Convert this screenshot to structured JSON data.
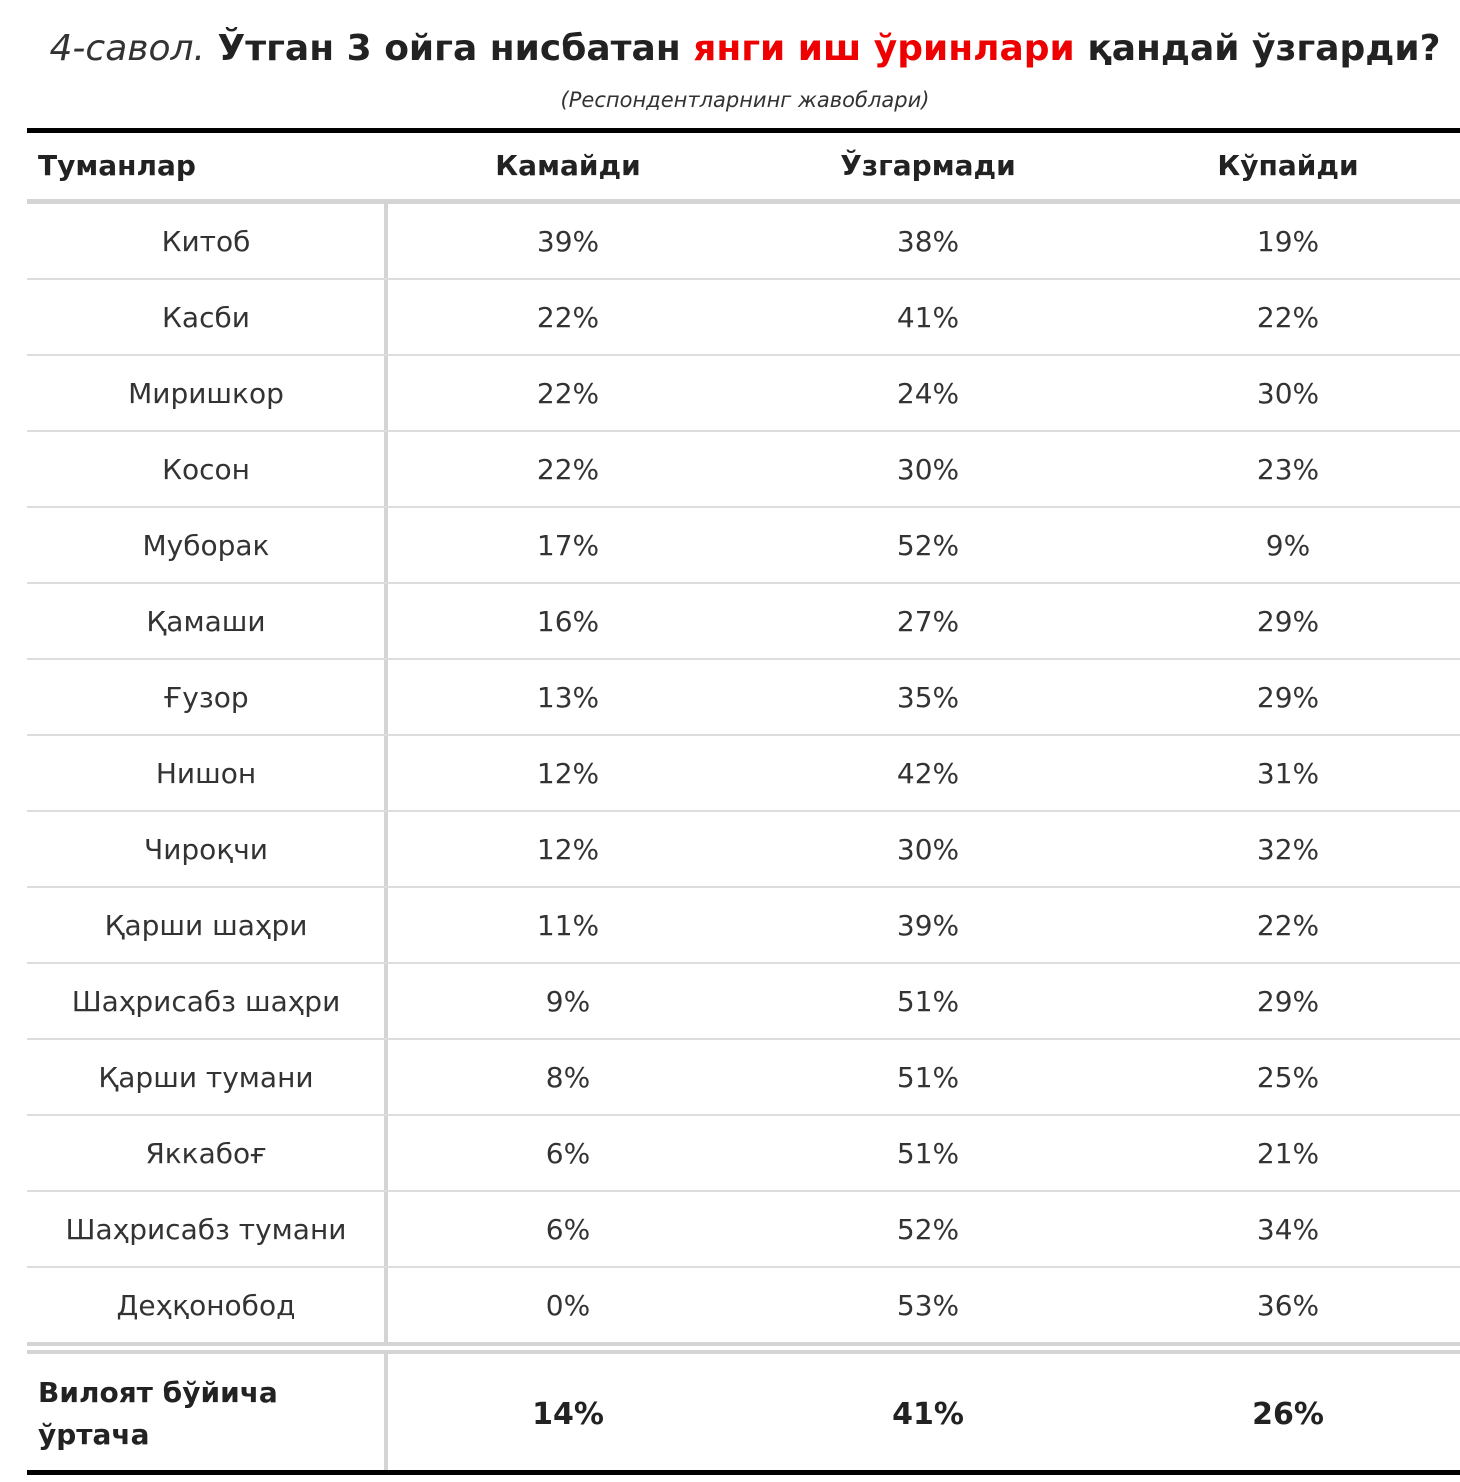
{
  "title": {
    "question": "4-савол.",
    "part1": " Ўтган 3 ойга нисбатан ",
    "highlight": "янги иш ўринлари",
    "part2": " қандай ўзгарди?"
  },
  "subtitle": "(Респондентларнинг жавоблари)",
  "colors": {
    "highlight": "#ee0000",
    "rule": "#000000",
    "divider": "#d4d4d4"
  },
  "table": {
    "headers": [
      "Туманлар",
      "Камайди",
      "Ўзгармади",
      "Кўпайди"
    ],
    "rows": [
      [
        "Китоб",
        "39%",
        "38%",
        "19%"
      ],
      [
        "Касби",
        "22%",
        "41%",
        "22%"
      ],
      [
        "Миришкор",
        "22%",
        "24%",
        "30%"
      ],
      [
        "Косон",
        "22%",
        "30%",
        "23%"
      ],
      [
        "Муборак",
        "17%",
        "52%",
        "9%"
      ],
      [
        "Қамаши",
        "16%",
        "27%",
        "29%"
      ],
      [
        "Ғузор",
        "13%",
        "35%",
        "29%"
      ],
      [
        "Нишон",
        "12%",
        "42%",
        "31%"
      ],
      [
        "Чироқчи",
        "12%",
        "30%",
        "32%"
      ],
      [
        "Қарши шаҳри",
        "11%",
        "39%",
        "22%"
      ],
      [
        "Шаҳрисабз шаҳри",
        "9%",
        "51%",
        "29%"
      ],
      [
        "Қарши тумани",
        "8%",
        "51%",
        "25%"
      ],
      [
        "Яккабоғ",
        "6%",
        "51%",
        "21%"
      ],
      [
        "Шаҳрисабз тумани",
        "6%",
        "52%",
        "34%"
      ],
      [
        "Деҳқонобод",
        "0%",
        "53%",
        "36%"
      ]
    ],
    "footer": {
      "label": "Вилоят бўйича ўртача",
      "values": [
        "14%",
        "41%",
        "26%"
      ]
    }
  }
}
